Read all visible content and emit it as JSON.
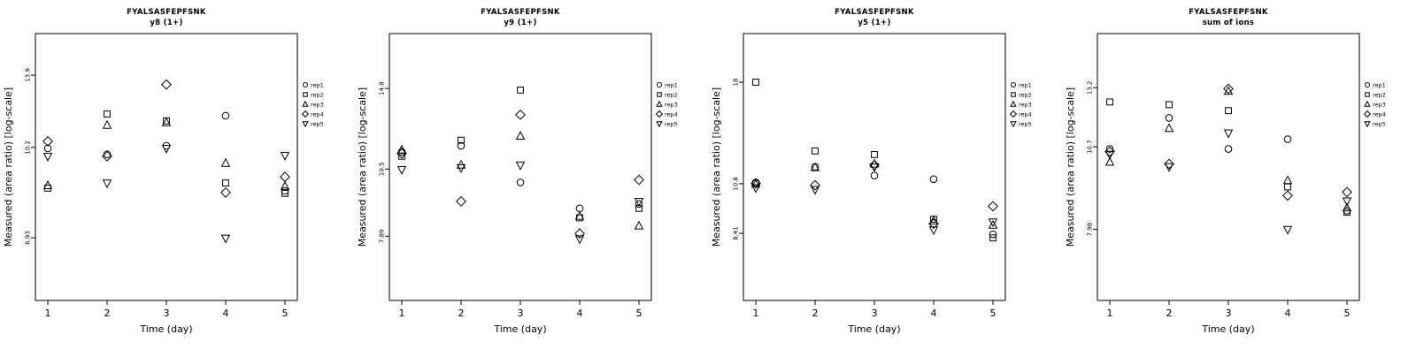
{
  "page": {
    "background": "#ffffff",
    "accent": "#000000"
  },
  "legend": {
    "items": [
      {
        "symbol": "circle",
        "label": "rep1"
      },
      {
        "symbol": "square",
        "label": "rep2"
      },
      {
        "symbol": "triangle-up",
        "label": "rep3"
      },
      {
        "symbol": "diamond",
        "label": "rep4"
      },
      {
        "symbol": "triangle-down",
        "label": "rep5"
      }
    ]
  },
  "chart_data": [
    {
      "type": "scatter",
      "title": "FYALSASFEPFSNK",
      "subtitle": "y8 (1+)",
      "xlabel": "Time (day)",
      "ylabel": "Measured (area ratio) [log-scale]",
      "x": [
        1,
        2,
        3,
        4,
        5
      ],
      "x_tick_labels": [
        "1",
        "2",
        "3",
        "4",
        "5"
      ],
      "y_scale": "log",
      "ylim": [
        5.3,
        16.6
      ],
      "y_ticks": [
        {
          "value": 6.93,
          "label": "6.93"
        },
        {
          "value": 10.2,
          "label": "10.2"
        },
        {
          "value": 13.9,
          "label": "13.9"
        }
      ],
      "series": [
        {
          "name": "rep1",
          "symbol": "circle",
          "values": [
            10.16,
            9.9,
            10.27,
            11.68,
            8.47
          ]
        },
        {
          "name": "rep2",
          "symbol": "square",
          "values": [
            8.57,
            11.77,
            11.43,
            8.76,
            8.38
          ]
        },
        {
          "name": "rep3",
          "symbol": "triangle-up",
          "values": [
            8.66,
            11.21,
            11.34,
            9.53,
            8.63
          ]
        },
        {
          "name": "rep4",
          "symbol": "diamond",
          "values": [
            10.47,
            9.82,
            13.35,
            8.41,
            8.99
          ]
        },
        {
          "name": "rep5",
          "symbol": "triangle-down",
          "values": [
            9.82,
            8.76,
            10.16,
            6.92,
            9.86
          ]
        }
      ]
    },
    {
      "type": "scatter",
      "title": "FYALSASFEPFSNK",
      "subtitle": "y9 (1+)",
      "xlabel": "Time (day)",
      "ylabel": "Measured (area ratio) [log-scale]",
      "x": [
        1,
        2,
        3,
        4,
        5
      ],
      "x_tick_labels": [
        "1",
        "2",
        "3",
        "4",
        "5"
      ],
      "y_scale": "log",
      "ylim": [
        6.0,
        18.7
      ],
      "y_ticks": [
        {
          "value": 7.89,
          "label": "7.89"
        },
        {
          "value": 10.5,
          "label": "10.5"
        },
        {
          "value": 14.8,
          "label": "14.8"
        }
      ],
      "series": [
        {
          "name": "rep1",
          "symbol": "circle",
          "values": [
            11.3,
            11.6,
            9.92,
            8.88,
            9.05
          ]
        },
        {
          "name": "rep2",
          "symbol": "square",
          "values": [
            11.09,
            11.87,
            14.7,
            8.53,
            8.88
          ]
        },
        {
          "name": "rep3",
          "symbol": "triangle-up",
          "values": [
            11.39,
            10.68,
            12.08,
            8.59,
            8.24
          ]
        },
        {
          "name": "rep4",
          "symbol": "diamond",
          "values": [
            11.22,
            9.15,
            13.23,
            7.98,
            10.03
          ]
        },
        {
          "name": "rep5",
          "symbol": "triangle-down",
          "values": [
            10.48,
            10.56,
            10.68,
            7.8,
            9.15
          ]
        }
      ]
    },
    {
      "type": "scatter",
      "title": "FYALSASFEPFSNK",
      "subtitle": "y5 (1+)",
      "xlabel": "Time (day)",
      "ylabel": "Measured (area ratio) [log-scale]",
      "x": [
        1,
        2,
        3,
        4,
        5
      ],
      "x_tick_labels": [
        "1",
        "2",
        "3",
        "4",
        "5"
      ],
      "y_scale": "log",
      "ylim": [
        6.0,
        23.0
      ],
      "y_ticks": [
        {
          "value": 8.41,
          "label": "8.41"
        },
        {
          "value": 10.8,
          "label": "10.8"
        },
        {
          "value": 18,
          "label": "18"
        }
      ],
      "series": [
        {
          "name": "rep1",
          "symbol": "circle",
          "values": [
            10.87,
            11.76,
            11.25,
            11.05,
            8.37
          ]
        },
        {
          "name": "rep2",
          "symbol": "square",
          "values": [
            18.01,
            12.74,
            12.51,
            9.03,
            8.22
          ]
        },
        {
          "name": "rep3",
          "symbol": "triangle-up",
          "values": [
            10.77,
            11.71,
            11.92,
            8.95,
            8.76
          ]
        },
        {
          "name": "rep4",
          "symbol": "diamond",
          "values": [
            10.82,
            10.72,
            11.86,
            8.83,
            9.64
          ]
        },
        {
          "name": "rep5",
          "symbol": "triangle-down",
          "values": [
            10.58,
            10.49,
            11.76,
            8.56,
            8.91
          ]
        }
      ]
    },
    {
      "type": "scatter",
      "title": "FYALSASFEPFSNK",
      "subtitle": "sum of ions",
      "xlabel": "Time (day)",
      "ylabel": "Measured (area ratio) [log-scale]",
      "x": [
        1,
        2,
        3,
        4,
        5
      ],
      "x_tick_labels": [
        "1",
        "2",
        "3",
        "4",
        "5"
      ],
      "y_scale": "log",
      "ylim": [
        6.2,
        16.0
      ],
      "y_ticks": [
        {
          "value": 7.98,
          "label": "7.98"
        },
        {
          "value": 10.7,
          "label": "10.7"
        },
        {
          "value": 13.2,
          "label": "13.2"
        }
      ],
      "series": [
        {
          "name": "rep1",
          "symbol": "circle",
          "values": [
            10.62,
            11.86,
            10.62,
            10.99,
            8.53
          ]
        },
        {
          "name": "rep2",
          "symbol": "square",
          "values": [
            12.55,
            12.43,
            12.17,
            9.28,
            8.48
          ]
        },
        {
          "name": "rep3",
          "symbol": "triangle-up",
          "values": [
            10.13,
            11.42,
            13.03,
            9.49,
            8.61
          ]
        },
        {
          "name": "rep4",
          "symbol": "diamond",
          "values": [
            10.52,
            10.07,
            13.15,
            9.0,
            9.11
          ]
        },
        {
          "name": "rep5",
          "symbol": "triangle-down",
          "values": [
            10.42,
            9.97,
            11.24,
            7.98,
            8.83
          ]
        }
      ]
    }
  ]
}
